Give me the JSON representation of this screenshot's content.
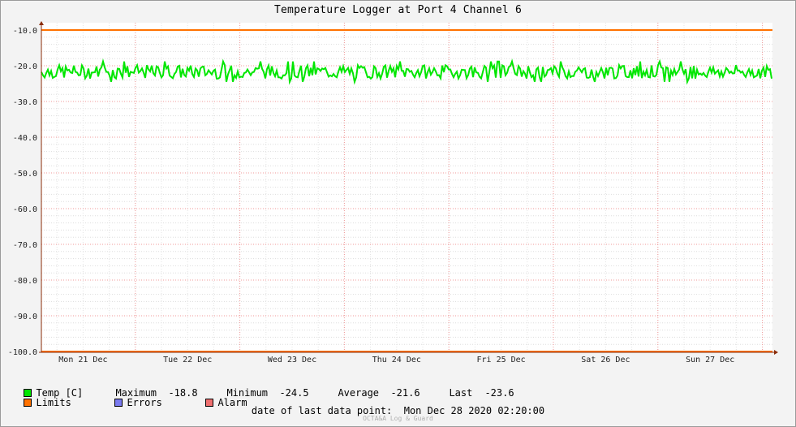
{
  "chart_data": {
    "type": "line",
    "title": "Temperature Logger at Port 4 Channel 6",
    "ylim": [
      -100,
      -10
    ],
    "y_ticks": [
      "-10.0",
      "-20.0",
      "-30.0",
      "-40.0",
      "-50.0",
      "-60.0",
      "-70.0",
      "-80.0",
      "-90.0",
      "-100.0"
    ],
    "x_ticks": [
      "Mon 21 Dec",
      "Tue 22 Dec",
      "Wed 23 Dec",
      "Thu 24 Dec",
      "Fri 25 Dec",
      "Sat 26 Dec",
      "Sun 27 Dec"
    ],
    "grid": true,
    "series": [
      {
        "name": "Temp [C]",
        "color": "#00e600",
        "band": {
          "min": -24.5,
          "max": -18.8,
          "typical_low": -23.6,
          "typical_high": -19.8
        },
        "average": -21.6,
        "last": -23.6
      },
      {
        "name": "Limits",
        "color": "#ff7200",
        "lines": [
          -10.0,
          -100.0
        ]
      }
    ]
  },
  "legend": {
    "temp": {
      "label": "Temp [C]",
      "color": "#00e600"
    },
    "maximum_label": "Maximum",
    "maximum_value": "-18.8",
    "minimum_label": "Minimum",
    "minimum_value": "-24.5",
    "average_label": "Average",
    "average_value": "-21.6",
    "last_label": "Last",
    "last_value": "-23.6",
    "limits": {
      "label": "Limits",
      "color": "#ff7200"
    },
    "errors": {
      "label": "Errors",
      "color": "#7b7bf0"
    },
    "alarm": {
      "label": "Alarm",
      "color": "#f07070"
    }
  },
  "footer": {
    "last_data_label": "date of last data point:",
    "last_data_value": "Mon Dec 28 2020 02:20:00",
    "watermark": "OCTA&A Log & Guard"
  }
}
